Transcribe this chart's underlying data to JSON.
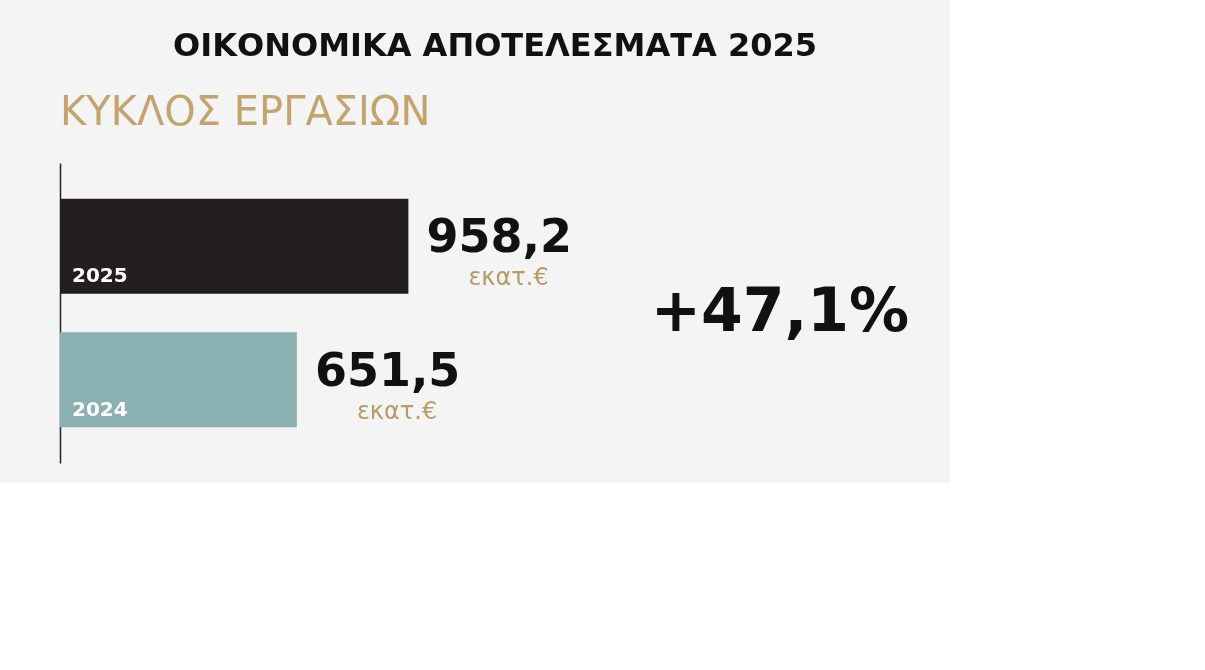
{
  "chart_data": {
    "type": "bar",
    "orientation": "horizontal",
    "title": "ΟΙΚΟΝΟΜΙΚΑ ΑΠΟΤΕΛΕΣΜΑΤΑ 2025",
    "subtitle": "ΚΥΚΛΟΣ ΕΡΓΑΣΙΩΝ",
    "categories": [
      "2025",
      "2024"
    ],
    "values": [
      958.2,
      651.5
    ],
    "colors": [
      "#231f20",
      "#8ab0b1"
    ],
    "value_labels": [
      "958,2",
      "651,5"
    ],
    "annotations": [
      {
        "text": "εκατ.€",
        "x": 958.2,
        "y": "2025"
      },
      {
        "text": "εκατ.€",
        "x": 651.5,
        "y": "2024"
      },
      "+47,1%"
    ],
    "grid": false
  }
}
